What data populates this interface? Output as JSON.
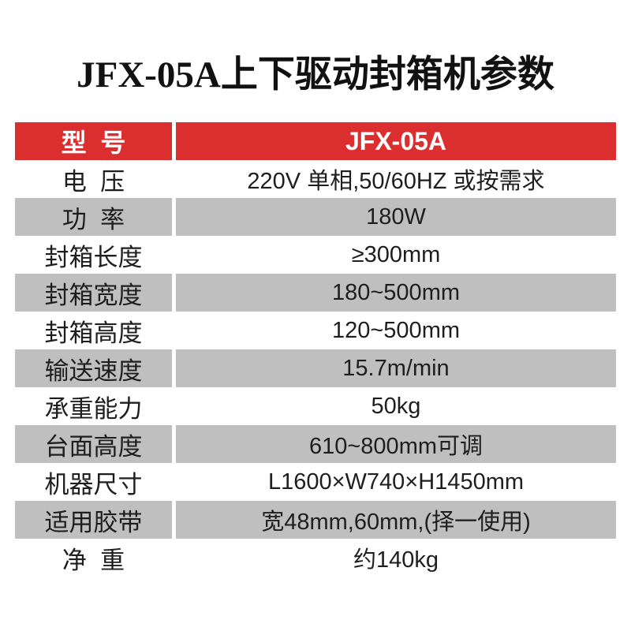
{
  "page": {
    "title": "JFX-05A上下驱动封箱机参数"
  },
  "colors": {
    "header_bg": "#db2e2e",
    "header_text": "#ffffff",
    "row_alt_bg": "#bfbfbf",
    "row_bg": "#ffffff",
    "text": "#1e1e1e"
  },
  "table": {
    "header": {
      "label": "型  号",
      "value": "JFX-05A"
    },
    "rows": [
      {
        "label": "电  压",
        "value": "220V 单相,50/60HZ 或按需求"
      },
      {
        "label": "功  率",
        "value": "180W"
      },
      {
        "label": "封箱长度",
        "value": "≥300mm"
      },
      {
        "label": "封箱宽度",
        "value": "180~500mm"
      },
      {
        "label": "封箱高度",
        "value": "120~500mm"
      },
      {
        "label": "输送速度",
        "value": "15.7m/min"
      },
      {
        "label": "承重能力",
        "value": "50kg"
      },
      {
        "label": "台面高度",
        "value": "610~800mm可调"
      },
      {
        "label": "机器尺寸",
        "value": "L1600×W740×H1450mm"
      },
      {
        "label": "适用胶带",
        "value": "宽48mm,60mm,(择一使用)"
      },
      {
        "label": "净  重",
        "value": "约140kg"
      }
    ]
  }
}
